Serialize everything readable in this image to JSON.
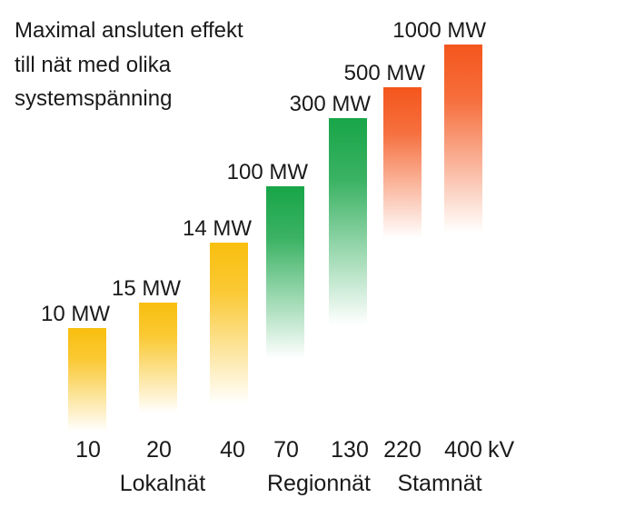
{
  "title_lines": [
    "Maximal ansluten effekt",
    "till nät med olika",
    "systemspänning"
  ],
  "chart_data": {
    "type": "bar",
    "title": "Maximal ansluten effekt till nät med olika systemspänning",
    "categories": [
      "10",
      "20",
      "40",
      "70",
      "130",
      "220",
      "400"
    ],
    "values": [
      10,
      15,
      14,
      100,
      300,
      500,
      1000
    ],
    "value_labels": [
      "10 MW",
      "15 MW",
      "14 MW",
      "100 MW",
      "300 MW",
      "500 MW",
      "1000 MW"
    ],
    "unit_label": "kV",
    "value_unit": "MW",
    "groups": [
      {
        "label": "Lokalnät",
        "categories": [
          "10",
          "20",
          "40"
        ],
        "color": "#f9bf0f"
      },
      {
        "label": "Regionnät",
        "categories": [
          "70",
          "130"
        ],
        "color": "#18a548"
      },
      {
        "label": "Stamnät",
        "categories": [
          "220",
          "400"
        ],
        "color": "#f4561c"
      }
    ],
    "grid": false
  }
}
